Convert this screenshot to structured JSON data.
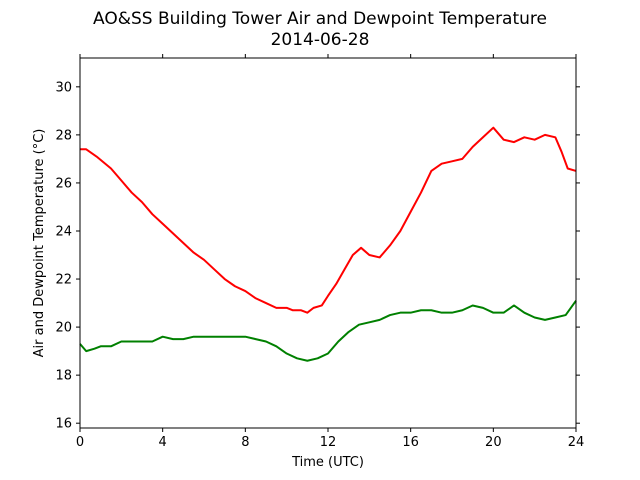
{
  "chart_data": {
    "type": "line",
    "title": "AO&SS Building Tower Air and Dewpoint Temperature",
    "subtitle": "2014-06-28",
    "xlabel": "Time (UTC)",
    "ylabel": "Air and Dewpoint Temperature (°C)",
    "xlim": [
      0,
      24
    ],
    "ylim": [
      15.8,
      31.2
    ],
    "xticks": [
      "0",
      "4",
      "8",
      "12",
      "16",
      "20",
      "24"
    ],
    "yticks": [
      "16",
      "18",
      "20",
      "22",
      "24",
      "26",
      "28",
      "30"
    ],
    "grid": false,
    "legend": "none",
    "series": [
      {
        "color": "#ff0000",
        "x": [
          0,
          0.3,
          0.8,
          1.5,
          2,
          2.5,
          3,
          3.5,
          4,
          4.5,
          5,
          5.5,
          6,
          6.5,
          7,
          7.5,
          8,
          8.5,
          9,
          9.5,
          10,
          10.3,
          10.7,
          11,
          11.3,
          11.7,
          12,
          12.4,
          12.8,
          13.2,
          13.6,
          14,
          14.5,
          15,
          15.5,
          16,
          16.5,
          17,
          17.5,
          18,
          18.5,
          19,
          19.5,
          20,
          20.5,
          21,
          21.5,
          22,
          22.5,
          23,
          23.3,
          23.6,
          24
        ],
        "y": [
          27.4,
          27.4,
          27.1,
          26.6,
          26.1,
          25.6,
          25.2,
          24.7,
          24.3,
          23.9,
          23.5,
          23.1,
          22.8,
          22.4,
          22.0,
          21.7,
          21.5,
          21.2,
          21.0,
          20.8,
          20.8,
          20.7,
          20.7,
          20.6,
          20.8,
          20.9,
          21.3,
          21.8,
          22.4,
          23.0,
          23.3,
          23.0,
          22.9,
          23.4,
          24.0,
          24.8,
          25.6,
          26.5,
          26.8,
          26.9,
          27.0,
          27.5,
          27.9,
          28.3,
          27.8,
          27.7,
          27.9,
          27.8,
          28.0,
          27.9,
          27.3,
          26.6,
          26.5
        ]
      },
      {
        "color": "#008000",
        "x": [
          0,
          0.3,
          0.7,
          1,
          1.5,
          2,
          2.5,
          3,
          3.5,
          4,
          4.5,
          5,
          5.5,
          6,
          6.5,
          7,
          7.5,
          8,
          8.5,
          9,
          9.5,
          10,
          10.5,
          11,
          11.5,
          12,
          12.5,
          13,
          13.5,
          14,
          14.5,
          15,
          15.5,
          16,
          16.5,
          17,
          17.5,
          18,
          18.5,
          19,
          19.5,
          20,
          20.5,
          21,
          21.5,
          22,
          22.5,
          23,
          23.5,
          24
        ],
        "y": [
          19.3,
          19.0,
          19.1,
          19.2,
          19.2,
          19.4,
          19.4,
          19.4,
          19.4,
          19.6,
          19.5,
          19.5,
          19.6,
          19.6,
          19.6,
          19.6,
          19.6,
          19.6,
          19.5,
          19.4,
          19.2,
          18.9,
          18.7,
          18.6,
          18.7,
          18.9,
          19.4,
          19.8,
          20.1,
          20.2,
          20.3,
          20.5,
          20.6,
          20.6,
          20.7,
          20.7,
          20.6,
          20.6,
          20.7,
          20.9,
          20.8,
          20.6,
          20.6,
          20.9,
          20.6,
          20.4,
          20.3,
          20.4,
          20.5,
          21.1
        ]
      }
    ]
  }
}
